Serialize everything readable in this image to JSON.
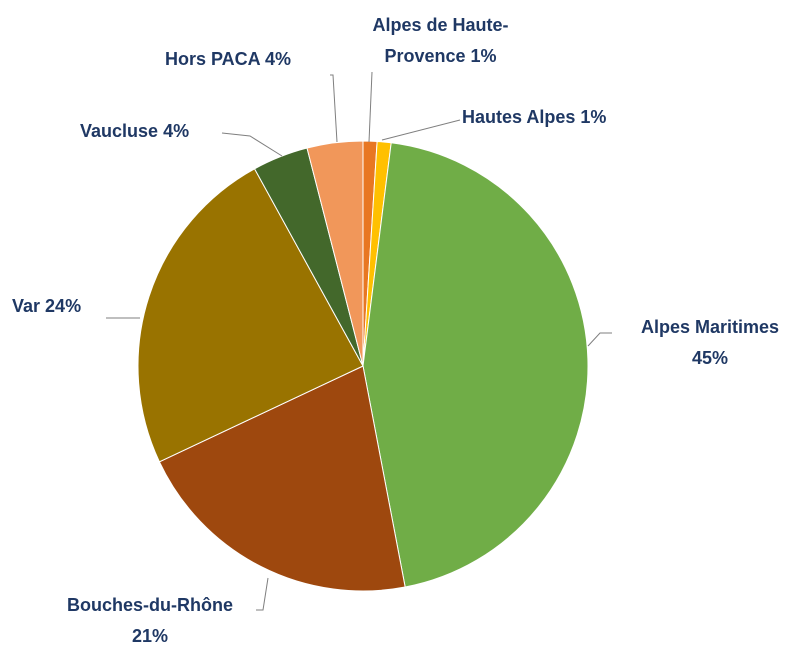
{
  "chart_data": {
    "type": "pie",
    "categories": [
      "Alpes de Haute-Provence",
      "Hautes Alpes",
      "Alpes Maritimes",
      "Bouches-du-Rhône",
      "Var",
      "Vaucluse",
      "Hors PACA"
    ],
    "values": [
      1,
      1,
      45,
      21,
      24,
      4,
      4
    ],
    "value_labels": [
      "1%",
      "1%",
      "45%",
      "21%",
      "24%",
      "4%",
      "4%"
    ],
    "colors": [
      "#e87722",
      "#ffc000",
      "#70ad47",
      "#9e480e",
      "#997300",
      "#43682b",
      "#f1975a"
    ]
  }
}
